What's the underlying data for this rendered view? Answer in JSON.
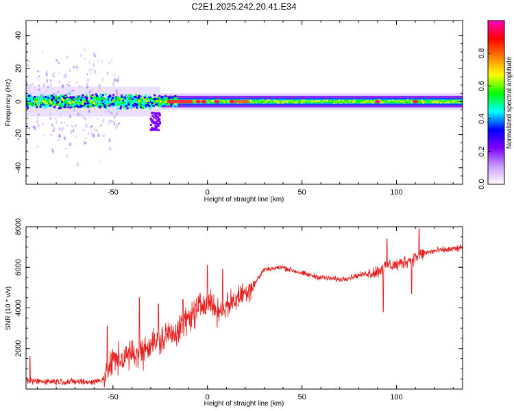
{
  "title": "C2E1.2025.242.20.41.E34",
  "chart_data": [
    {
      "type": "heatmap",
      "xlabel": "Height of straight line (km)",
      "ylabel": "Frequency (Hz)",
      "xlim": [
        -96,
        135
      ],
      "ylim": [
        -50,
        49
      ],
      "xticks": [
        -50,
        0,
        50,
        100
      ],
      "yticks": [
        -40,
        -20,
        0,
        20,
        40
      ],
      "colorbar": {
        "label": "Normalized spectral amplitude",
        "range": [
          0,
          1
        ],
        "ticks": [
          0.0,
          0.2,
          0.4,
          0.6,
          0.8
        ],
        "colors": [
          "#ffffff",
          "#c89bff",
          "#7f00ff",
          "#0000ff",
          "#00ffff",
          "#00ff00",
          "#ffff00",
          "#ff7f00",
          "#ff0000",
          "#ff00c0"
        ]
      },
      "band": {
        "center_hz": 0,
        "ridge_segments": [
          {
            "x": [
              -96,
              -25
            ],
            "halfwidth_hz": 6,
            "peak_amplitude": 0.5
          },
          {
            "x": [
              -25,
              135
            ],
            "halfwidth_hz": 3,
            "peak_amplitude": 0.55
          }
        ],
        "hotspots_km": [
          -20,
          -15,
          -5,
          -2,
          5,
          13,
          20,
          90,
          110
        ]
      }
    },
    {
      "type": "line",
      "xlabel": "Height of straight line (km)",
      "ylabel": "SNR (10 * v/v)",
      "xlim": [
        -96,
        135
      ],
      "ylim": [
        0,
        8000
      ],
      "xticks": [
        -50,
        0,
        50,
        100
      ],
      "yticks": [
        2000,
        4000,
        6000,
        8000
      ],
      "color": "#e82020",
      "trend": {
        "x": [
          -96,
          -60,
          -55,
          -50,
          -45,
          -40,
          -35,
          -30,
          -25,
          -20,
          -15,
          -10,
          -5,
          0,
          5,
          10,
          15,
          20,
          25,
          30,
          40,
          50,
          60,
          70,
          80,
          90,
          95,
          100,
          105,
          110,
          115,
          120,
          135
        ],
        "y": [
          400,
          350,
          500,
          1400,
          1500,
          1700,
          1800,
          2300,
          2300,
          2800,
          2900,
          3500,
          3900,
          4500,
          3800,
          4100,
          4400,
          4800,
          5200,
          5900,
          6000,
          5700,
          5500,
          5400,
          5600,
          5800,
          6100,
          6100,
          6300,
          6500,
          6700,
          6800,
          6950
        ]
      },
      "spikes": [
        {
          "x": -94,
          "y": 1600
        },
        {
          "x": -53,
          "y": 3100
        },
        {
          "x": -36,
          "y": 4500
        },
        {
          "x": -26,
          "y": 4200
        },
        {
          "x": -13,
          "y": 4400
        },
        {
          "x": 0,
          "y": 6100
        },
        {
          "x": 8,
          "y": 5900
        },
        {
          "x": 93,
          "y": 3800
        },
        {
          "x": 95,
          "y": 7400
        },
        {
          "x": 108,
          "y": 4700
        },
        {
          "x": 112,
          "y": 7900
        }
      ]
    }
  ]
}
